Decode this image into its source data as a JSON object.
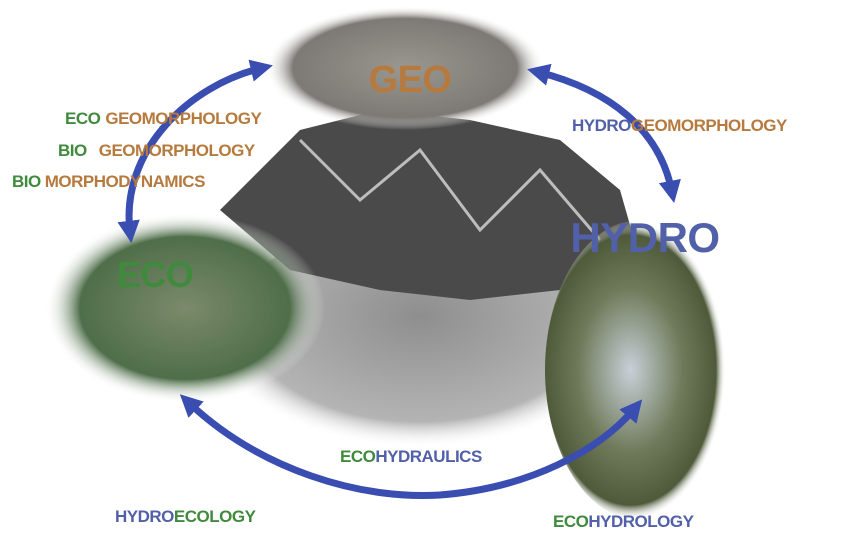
{
  "nodes": [
    {
      "label": "GEO"
    },
    {
      "label": "HYDRO"
    },
    {
      "label": "ECO"
    }
  ],
  "links": [
    {
      "parts": [
        "ECO",
        "GEOMORPHOLOGY"
      ]
    },
    {
      "parts": [
        "BIO",
        "GEOMORPHOLOGY"
      ]
    },
    {
      "parts": [
        "BIO",
        "MORPHODYNAMICS"
      ]
    },
    {
      "parts": [
        "HYDRO",
        "GEOMORPHOLOGY"
      ]
    },
    {
      "parts": [
        "ECO",
        "HYDRAULICS"
      ]
    },
    {
      "parts": [
        "HYDRO",
        "ECOLOGY"
      ]
    },
    {
      "parts": [
        "ECO",
        "HYDROLOGY"
      ]
    }
  ]
}
